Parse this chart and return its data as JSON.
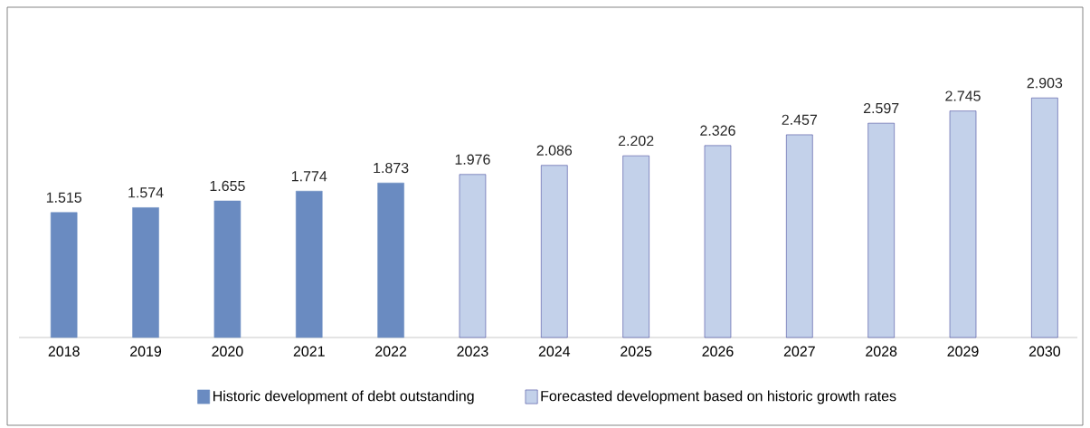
{
  "chart_data": {
    "type": "bar",
    "categories": [
      "2018",
      "2019",
      "2020",
      "2021",
      "2022",
      "2023",
      "2024",
      "2025",
      "2026",
      "2027",
      "2028",
      "2029",
      "2030"
    ],
    "series": [
      {
        "name": "Historic development of debt outstanding",
        "color": "#6a8bc1",
        "values": [
          1.515,
          1.574,
          1.655,
          1.774,
          1.873,
          null,
          null,
          null,
          null,
          null,
          null,
          null,
          null
        ]
      },
      {
        "name": "Forecasted development based on historic growth rates",
        "color": "#c3d1ea",
        "values": [
          null,
          null,
          null,
          null,
          null,
          1.976,
          2.086,
          2.202,
          2.326,
          2.457,
          2.597,
          2.745,
          2.903
        ]
      }
    ],
    "data_labels": true,
    "legend": "bottom"
  }
}
